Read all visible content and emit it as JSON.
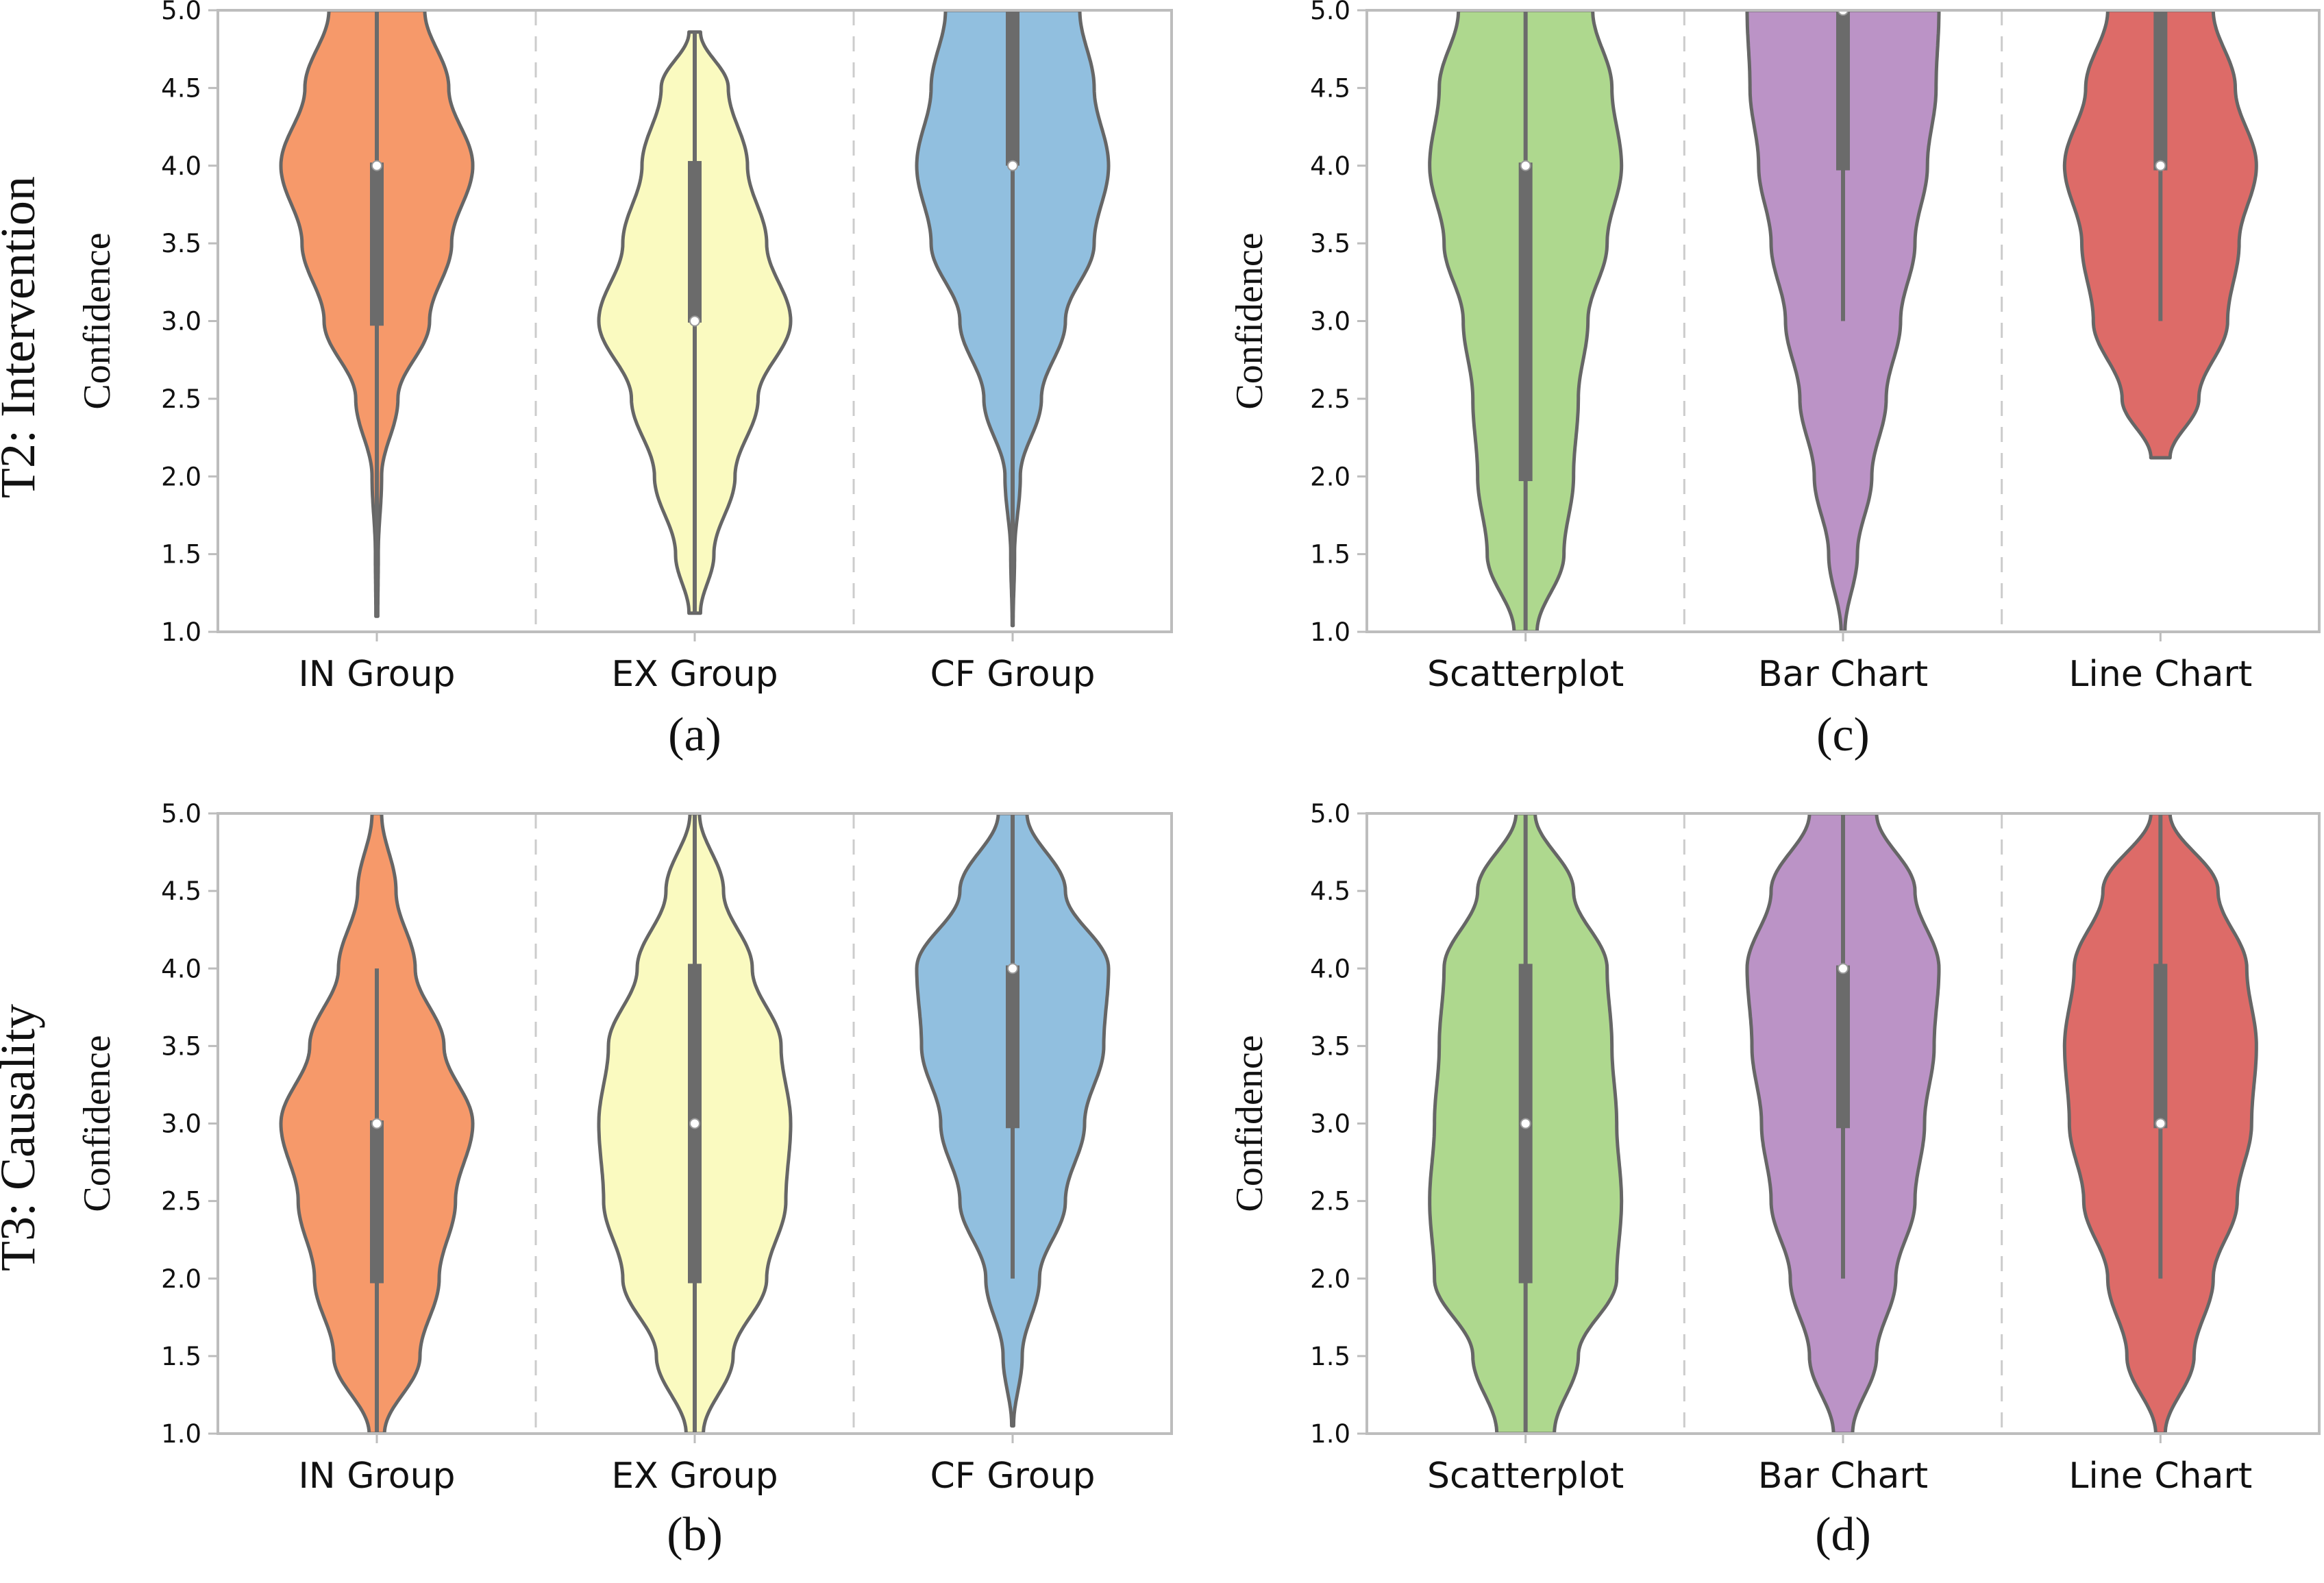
{
  "figure": {
    "row_labels": [
      "T2: Intervention",
      "T3: Causality"
    ]
  },
  "chart_data": [
    {
      "type": "violin",
      "panel": "(a)",
      "ylabel": "Confidence",
      "ylim": [
        1.0,
        5.0
      ],
      "yticks": [
        "1.0",
        "1.5",
        "2.0",
        "2.5",
        "3.0",
        "3.5",
        "4.0",
        "4.5",
        "5.0"
      ],
      "categories": [
        "IN Group",
        "EX Group",
        "CF Group"
      ],
      "colors": [
        "#F6996A",
        "#FAFAC0",
        "#91BFDF"
      ],
      "violins": [
        {
          "min": 1.1,
          "max": 5.0,
          "q1": 2.97,
          "median": 4.0,
          "q3": 4.02,
          "profile": [
            [
              1.1,
              0.01
            ],
            [
              1.5,
              0.015
            ],
            [
              2.0,
              0.05
            ],
            [
              2.5,
              0.22
            ],
            [
              3.0,
              0.55
            ],
            [
              3.5,
              0.78
            ],
            [
              4.0,
              1.0
            ],
            [
              4.5,
              0.75
            ],
            [
              5.0,
              0.5
            ]
          ]
        },
        {
          "min": 1.12,
          "max": 4.86,
          "q1": 2.99,
          "median": 3.0,
          "q3": 4.03,
          "profile": [
            [
              1.12,
              0.06
            ],
            [
              1.5,
              0.2
            ],
            [
              2.0,
              0.42
            ],
            [
              2.5,
              0.66
            ],
            [
              3.0,
              1.0
            ],
            [
              3.5,
              0.75
            ],
            [
              4.0,
              0.55
            ],
            [
              4.5,
              0.35
            ],
            [
              4.86,
              0.06
            ]
          ]
        },
        {
          "min": 1.04,
          "max": 5.0,
          "q1": 4.0,
          "median": 4.0,
          "q3": 5.0,
          "profile": [
            [
              1.04,
              0.005
            ],
            [
              1.5,
              0.02
            ],
            [
              2.0,
              0.08
            ],
            [
              2.5,
              0.3
            ],
            [
              3.0,
              0.55
            ],
            [
              3.5,
              0.85
            ],
            [
              4.0,
              1.0
            ],
            [
              4.5,
              0.85
            ],
            [
              5.0,
              0.7
            ]
          ]
        }
      ]
    },
    {
      "type": "violin",
      "panel": "(b)",
      "ylabel": "Confidence",
      "ylim": [
        1.0,
        5.0
      ],
      "yticks": [
        "1.0",
        "1.5",
        "2.0",
        "2.5",
        "3.0",
        "3.5",
        "4.0",
        "4.5",
        "5.0"
      ],
      "categories": [
        "IN Group",
        "EX Group",
        "CF Group"
      ],
      "colors": [
        "#F6996A",
        "#FAFAC0",
        "#91BFDF"
      ],
      "violins": [
        {
          "min": 1.0,
          "max": 5.0,
          "q1": 1.97,
          "median": 3.0,
          "q3": 3.02,
          "whisker_max": 4.0,
          "profile": [
            [
              1.0,
              0.08
            ],
            [
              1.5,
              0.45
            ],
            [
              2.0,
              0.65
            ],
            [
              2.5,
              0.82
            ],
            [
              3.0,
              1.0
            ],
            [
              3.5,
              0.7
            ],
            [
              4.0,
              0.4
            ],
            [
              4.5,
              0.2
            ],
            [
              5.0,
              0.05
            ]
          ]
        },
        {
          "min": 1.0,
          "max": 5.0,
          "q1": 1.97,
          "median": 3.0,
          "q3": 4.03,
          "profile": [
            [
              1.0,
              0.09
            ],
            [
              1.5,
              0.4
            ],
            [
              2.0,
              0.75
            ],
            [
              2.5,
              0.95
            ],
            [
              3.0,
              1.0
            ],
            [
              3.5,
              0.9
            ],
            [
              4.0,
              0.6
            ],
            [
              4.5,
              0.3
            ],
            [
              5.0,
              0.05
            ]
          ]
        },
        {
          "min": 1.05,
          "max": 5.0,
          "q1": 2.97,
          "median": 4.0,
          "q3": 4.02,
          "whisker_min": 2.0,
          "profile": [
            [
              1.05,
              0.01
            ],
            [
              1.5,
              0.1
            ],
            [
              2.0,
              0.28
            ],
            [
              2.5,
              0.55
            ],
            [
              3.0,
              0.75
            ],
            [
              3.5,
              0.95
            ],
            [
              4.0,
              1.0
            ],
            [
              4.5,
              0.55
            ],
            [
              5.0,
              0.15
            ]
          ]
        }
      ]
    },
    {
      "type": "violin",
      "panel": "(c)",
      "ylabel": "Confidence",
      "ylim": [
        1.0,
        5.0
      ],
      "yticks": [
        "1.0",
        "1.5",
        "2.0",
        "2.5",
        "3.0",
        "3.5",
        "4.0",
        "4.5",
        "5.0"
      ],
      "categories": [
        "Scatterplot",
        "Bar Chart",
        "Line Chart"
      ],
      "colors": [
        "#AED88E",
        "#BB93C6",
        "#DD6B68"
      ],
      "violins": [
        {
          "min": 1.0,
          "max": 5.0,
          "q1": 1.97,
          "median": 4.0,
          "q3": 4.02,
          "profile": [
            [
              1.0,
              0.12
            ],
            [
              1.5,
              0.4
            ],
            [
              2.0,
              0.5
            ],
            [
              2.5,
              0.55
            ],
            [
              3.0,
              0.65
            ],
            [
              3.5,
              0.85
            ],
            [
              4.0,
              1.0
            ],
            [
              4.5,
              0.9
            ],
            [
              5.0,
              0.7
            ]
          ]
        },
        {
          "min": 1.0,
          "max": 5.0,
          "q1": 3.97,
          "median": 5.0,
          "q3": 5.0,
          "whisker_min": 3.0,
          "profile": [
            [
              1.0,
              0.02
            ],
            [
              1.5,
              0.15
            ],
            [
              2.0,
              0.3
            ],
            [
              2.5,
              0.45
            ],
            [
              3.0,
              0.6
            ],
            [
              3.5,
              0.75
            ],
            [
              4.0,
              0.88
            ],
            [
              4.5,
              0.97
            ],
            [
              5.0,
              1.0
            ]
          ]
        },
        {
          "min": 2.12,
          "max": 5.0,
          "q1": 3.97,
          "median": 4.0,
          "q3": 5.0,
          "whisker_min": 3.0,
          "profile": [
            [
              2.12,
              0.1
            ],
            [
              2.5,
              0.4
            ],
            [
              3.0,
              0.7
            ],
            [
              3.5,
              0.82
            ],
            [
              4.0,
              1.0
            ],
            [
              4.5,
              0.78
            ],
            [
              5.0,
              0.55
            ]
          ]
        }
      ]
    },
    {
      "type": "violin",
      "panel": "(d)",
      "ylabel": "Confidence",
      "ylim": [
        1.0,
        5.0
      ],
      "yticks": [
        "1.0",
        "1.5",
        "2.0",
        "2.5",
        "3.0",
        "3.5",
        "4.0",
        "4.5",
        "5.0"
      ],
      "categories": [
        "Scatterplot",
        "Bar Chart",
        "Line Chart"
      ],
      "colors": [
        "#AED88E",
        "#BB93C6",
        "#DD6B68"
      ],
      "violins": [
        {
          "min": 1.0,
          "max": 5.0,
          "q1": 1.97,
          "median": 3.0,
          "q3": 4.03,
          "profile": [
            [
              1.0,
              0.3
            ],
            [
              1.5,
              0.55
            ],
            [
              2.0,
              0.95
            ],
            [
              2.5,
              1.0
            ],
            [
              3.0,
              0.95
            ],
            [
              3.5,
              0.9
            ],
            [
              4.0,
              0.85
            ],
            [
              4.5,
              0.5
            ],
            [
              5.0,
              0.1
            ]
          ]
        },
        {
          "min": 1.0,
          "max": 5.0,
          "q1": 2.97,
          "median": 4.0,
          "q3": 4.02,
          "whisker_min": 2.0,
          "profile": [
            [
              1.0,
              0.1
            ],
            [
              1.5,
              0.35
            ],
            [
              2.0,
              0.55
            ],
            [
              2.5,
              0.75
            ],
            [
              3.0,
              0.85
            ],
            [
              3.5,
              0.95
            ],
            [
              4.0,
              1.0
            ],
            [
              4.5,
              0.75
            ],
            [
              5.0,
              0.35
            ]
          ]
        },
        {
          "min": 1.0,
          "max": 5.0,
          "q1": 2.97,
          "median": 3.0,
          "q3": 4.03,
          "whisker_min": 2.0,
          "profile": [
            [
              1.0,
              0.05
            ],
            [
              1.5,
              0.35
            ],
            [
              2.0,
              0.55
            ],
            [
              2.5,
              0.8
            ],
            [
              3.0,
              0.95
            ],
            [
              3.5,
              1.0
            ],
            [
              4.0,
              0.9
            ],
            [
              4.5,
              0.6
            ],
            [
              5.0,
              0.1
            ]
          ]
        }
      ]
    }
  ]
}
